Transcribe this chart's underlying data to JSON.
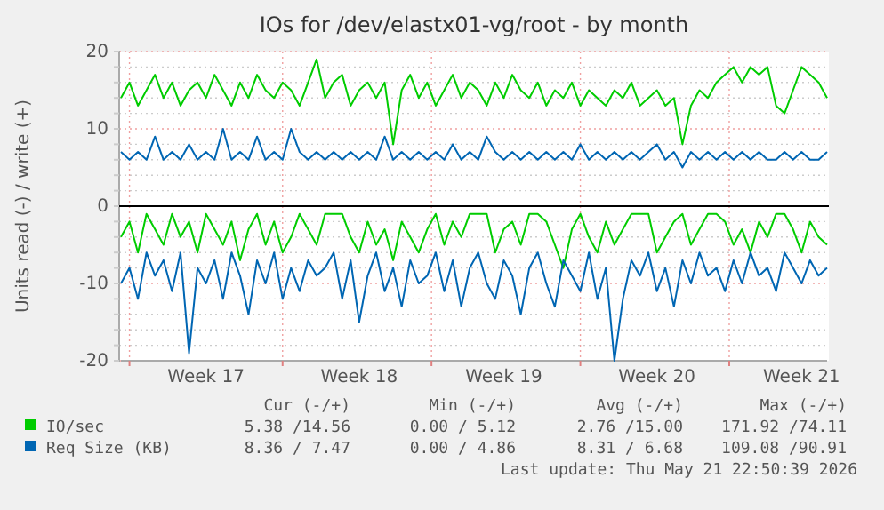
{
  "chart_data": {
    "type": "line",
    "title": "IOs for /dev/elastx01-vg/root - by month",
    "ylabel": "Units read (-) / write (+)",
    "categories": [
      null,
      null,
      null,
      null,
      null,
      null,
      null,
      null,
      null,
      null,
      "Week 17",
      null,
      null,
      null,
      null,
      null,
      null,
      null,
      null,
      null,
      null,
      null,
      null,
      null,
      null,
      null,
      null,
      null,
      "Week 18",
      null,
      null,
      null,
      null,
      null,
      null,
      null,
      null,
      null,
      null,
      null,
      null,
      null,
      null,
      null,
      null,
      "Week 19",
      null,
      null,
      null,
      null,
      null,
      null,
      null,
      null,
      null,
      null,
      null,
      null,
      null,
      null,
      null,
      null,
      null,
      "Week 20",
      null,
      null,
      null,
      null,
      null,
      null,
      null,
      null,
      null,
      null,
      null,
      null,
      null,
      null,
      null,
      null,
      "Week 21",
      null,
      null,
      null
    ],
    "ylim": [
      -20,
      20
    ],
    "yticks": [
      -20,
      {
        "value": -18,
        "label": null
      },
      {
        "value": -16,
        "label": null
      },
      {
        "value": -14,
        "label": null
      },
      {
        "value": -12,
        "label": null
      },
      -10,
      {
        "value": -8,
        "label": null
      },
      {
        "value": -6,
        "label": null
      },
      {
        "value": -4,
        "label": null
      },
      {
        "value": -2,
        "label": null
      },
      0,
      {
        "value": 2,
        "label": null
      },
      {
        "value": 4,
        "label": null
      },
      {
        "value": 6,
        "label": null
      },
      {
        "value": 8,
        "label": null
      },
      10,
      {
        "value": 12,
        "label": null
      },
      {
        "value": 14,
        "label": null
      },
      {
        "value": 16,
        "label": null
      },
      {
        "value": 18,
        "label": null
      },
      20
    ],
    "grid": true,
    "legend": "bottom",
    "series": [
      {
        "color": "#00cc00",
        "values": [
          -4,
          -2,
          -6,
          -1,
          -3,
          -5,
          -1,
          -4,
          -2,
          -6,
          -1,
          -3,
          -5,
          -2,
          -7,
          -3,
          -1,
          -5,
          -2,
          -6,
          -4,
          -1,
          -3,
          -5,
          -1,
          -1,
          -1,
          -4,
          -6,
          -2,
          -5,
          -3,
          -7,
          -2,
          -4,
          -6,
          -3,
          -1,
          -5,
          -2,
          -4,
          -1,
          -1,
          -1,
          -6,
          -3,
          -2,
          -5,
          -1,
          -1,
          -2,
          -5,
          -8,
          -3,
          -1,
          -4,
          -6,
          -2,
          -5,
          -3,
          -1,
          -1,
          -1,
          -6,
          -4,
          -2,
          -1,
          -5,
          -3,
          -1,
          -1,
          -2,
          -5,
          -3,
          -6,
          -2,
          -4,
          -1,
          -1,
          -3,
          -6,
          -2,
          -4,
          -5
        ]
      },
      {
        "name": "IO/sec",
        "color": "#00cc00",
        "values": [
          14,
          16,
          13,
          15,
          17,
          14,
          16,
          13,
          15,
          16,
          14,
          17,
          15,
          13,
          16,
          14,
          17,
          15,
          14,
          16,
          15,
          13,
          16,
          19,
          14,
          16,
          17,
          13,
          15,
          16,
          14,
          16,
          8,
          15,
          17,
          14,
          16,
          13,
          15,
          17,
          14,
          16,
          15,
          13,
          16,
          14,
          17,
          15,
          14,
          16,
          13,
          15,
          14,
          16,
          13,
          15,
          14,
          13,
          15,
          14,
          16,
          13,
          14,
          15,
          13,
          14,
          8,
          13,
          15,
          14,
          16,
          17,
          18,
          16,
          18,
          17,
          18,
          13,
          12,
          15,
          18,
          17,
          16,
          14
        ]
      },
      {
        "color": "#0066b3",
        "values": [
          -10,
          -8,
          -12,
          -6,
          -9,
          -7,
          -11,
          -6,
          -19,
          -8,
          -10,
          -7,
          -12,
          -6,
          -9,
          -14,
          -7,
          -10,
          -6,
          -12,
          -8,
          -11,
          -7,
          -9,
          -8,
          -6,
          -12,
          -7,
          -15,
          -9,
          -6,
          -11,
          -8,
          -13,
          -7,
          -10,
          -9,
          -6,
          -11,
          -7,
          -13,
          -8,
          -6,
          -10,
          -12,
          -7,
          -9,
          -14,
          -8,
          -6,
          -10,
          -13,
          -7,
          -9,
          -11,
          -6,
          -12,
          -8,
          -20,
          -12,
          -7,
          -9,
          -6,
          -11,
          -8,
          -13,
          -7,
          -10,
          -6,
          -9,
          -8,
          -11,
          -7,
          -10,
          -6,
          -9,
          -8,
          -11,
          -6,
          -8,
          -10,
          -7,
          -9,
          -8
        ]
      },
      {
        "name": "Req Size (KB)",
        "color": "#0066b3",
        "values": [
          7,
          6,
          7,
          6,
          9,
          6,
          7,
          6,
          8,
          6,
          7,
          6,
          10,
          6,
          7,
          6,
          9,
          6,
          7,
          6,
          10,
          7,
          6,
          7,
          6,
          7,
          6,
          7,
          6,
          7,
          6,
          9,
          6,
          7,
          6,
          7,
          6,
          7,
          6,
          8,
          6,
          7,
          6,
          9,
          7,
          6,
          7,
          6,
          7,
          6,
          7,
          6,
          7,
          6,
          8,
          6,
          7,
          6,
          7,
          6,
          7,
          6,
          7,
          8,
          6,
          7,
          5,
          7,
          6,
          7,
          6,
          7,
          6,
          7,
          6,
          7,
          6,
          6,
          7,
          6,
          7,
          6,
          6,
          7
        ]
      }
    ],
    "annotations": [
      "Cur (-/+)",
      "Min (-/+)",
      "Avg (-/+)",
      "Max (-/+)",
      "5.38 /14.56",
      "0.00 / 5.12",
      "2.76 /15.00",
      "171.92 /74.11",
      "8.36 / 7.47",
      "0.00 / 4.86",
      "8.31 / 6.68",
      "109.08 /90.91",
      "Last update: Thu May 21 22:50:39 2026"
    ]
  }
}
